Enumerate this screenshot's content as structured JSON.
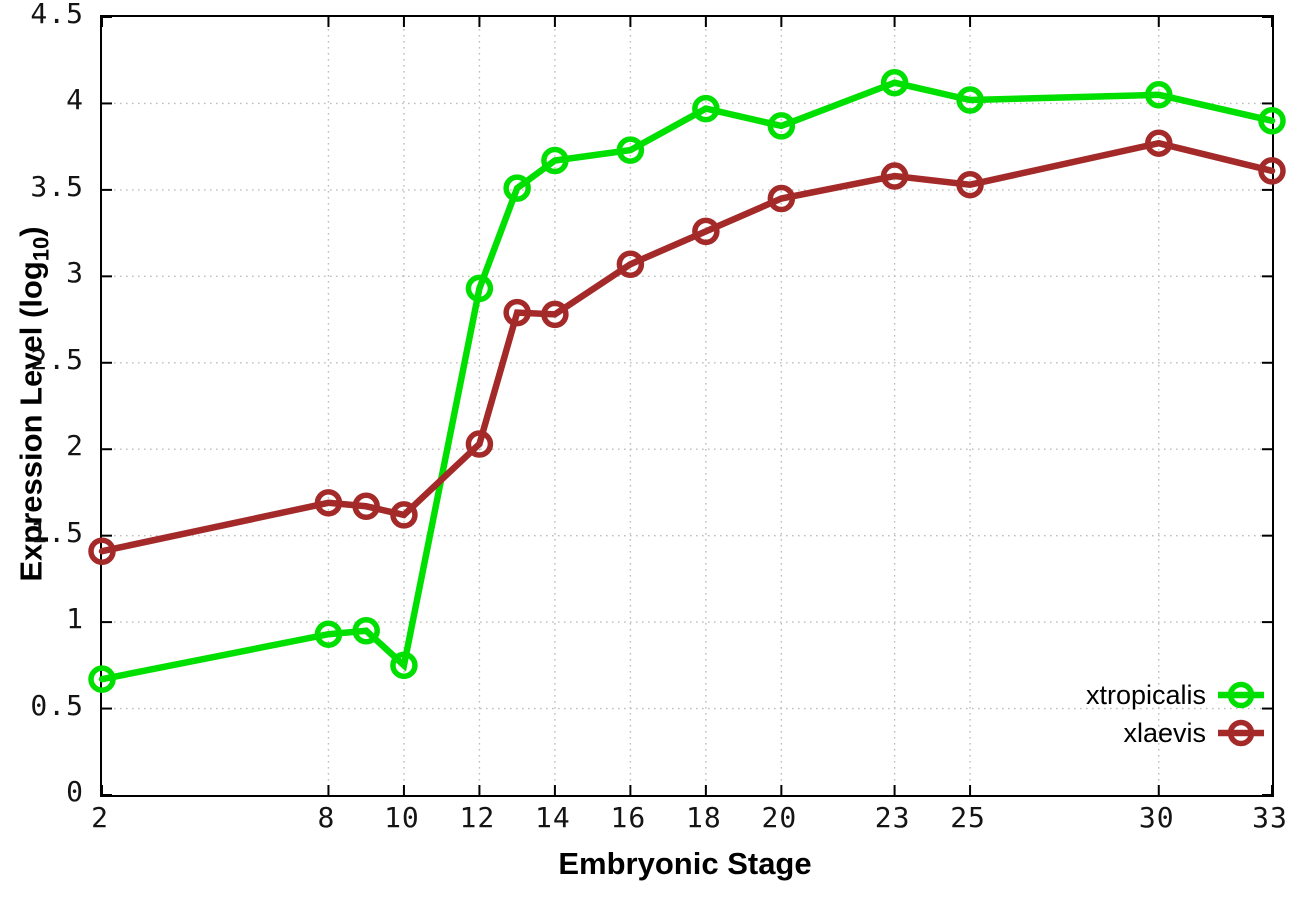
{
  "chart_data": {
    "type": "line",
    "title": "",
    "xlabel": "Embryonic Stage",
    "ylabel": "Expression Level (log10)",
    "ylabel_prefix": "Expression Level (log",
    "ylabel_sub": "10",
    "ylabel_suffix": ")",
    "x": [
      2,
      8,
      9,
      10,
      12,
      13,
      14,
      16,
      18,
      20,
      23,
      25,
      30,
      33
    ],
    "series": [
      {
        "name": "xtropicalis",
        "color": "#00e000",
        "values": [
          0.67,
          0.93,
          0.95,
          0.75,
          2.93,
          3.51,
          3.67,
          3.73,
          3.97,
          3.87,
          4.12,
          4.02,
          4.05,
          3.9
        ]
      },
      {
        "name": "xlaevis",
        "color": "#a42a2a",
        "values": [
          1.41,
          1.69,
          1.67,
          1.62,
          2.03,
          2.79,
          2.78,
          3.07,
          3.26,
          3.45,
          3.58,
          3.53,
          3.77,
          3.61
        ]
      }
    ],
    "xlim": [
      2,
      33
    ],
    "ylim": [
      0,
      4.5
    ],
    "x_ticks": [
      2,
      8,
      10,
      12,
      14,
      16,
      18,
      20,
      23,
      25,
      30,
      33
    ],
    "y_ticks": [
      0,
      0.5,
      1,
      1.5,
      2,
      2.5,
      3,
      3.5,
      4,
      4.5
    ],
    "grid": true,
    "legend_position": "bottom-right",
    "marker": "open-circle"
  },
  "style_colors": {
    "grid": "#bdbdbd",
    "axis": "#000000",
    "tick_text": "#141414"
  }
}
